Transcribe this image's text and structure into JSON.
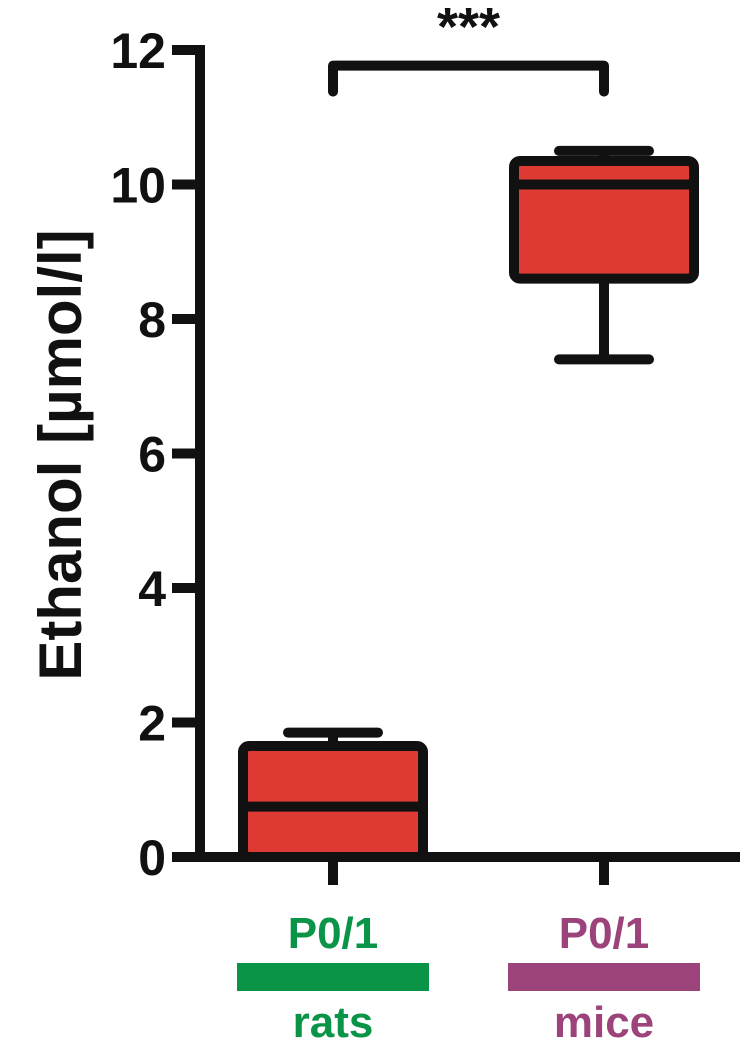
{
  "chart_data": {
    "type": "box",
    "ylabel": "Ethanol [µmol/l]",
    "ylim": [
      0,
      12
    ],
    "yticks": [
      0,
      2,
      4,
      6,
      8,
      10,
      12
    ],
    "groups": [
      {
        "top_label": "P0/1",
        "bottom_label": "rats",
        "color": "#0a9447",
        "whisker_low": 0,
        "q1": 0,
        "median": 0.75,
        "q3": 1.65,
        "whisker_high": 1.85
      },
      {
        "top_label": "P0/1",
        "bottom_label": "mice",
        "color": "#9b437a",
        "whisker_low": 7.4,
        "q1": 8.6,
        "median": 10.0,
        "q3": 10.35,
        "whisker_high": 10.5
      }
    ],
    "box_fill": "#dd3a33",
    "significance": {
      "text": "***",
      "between": [
        0,
        1
      ],
      "y": 11.5
    }
  }
}
